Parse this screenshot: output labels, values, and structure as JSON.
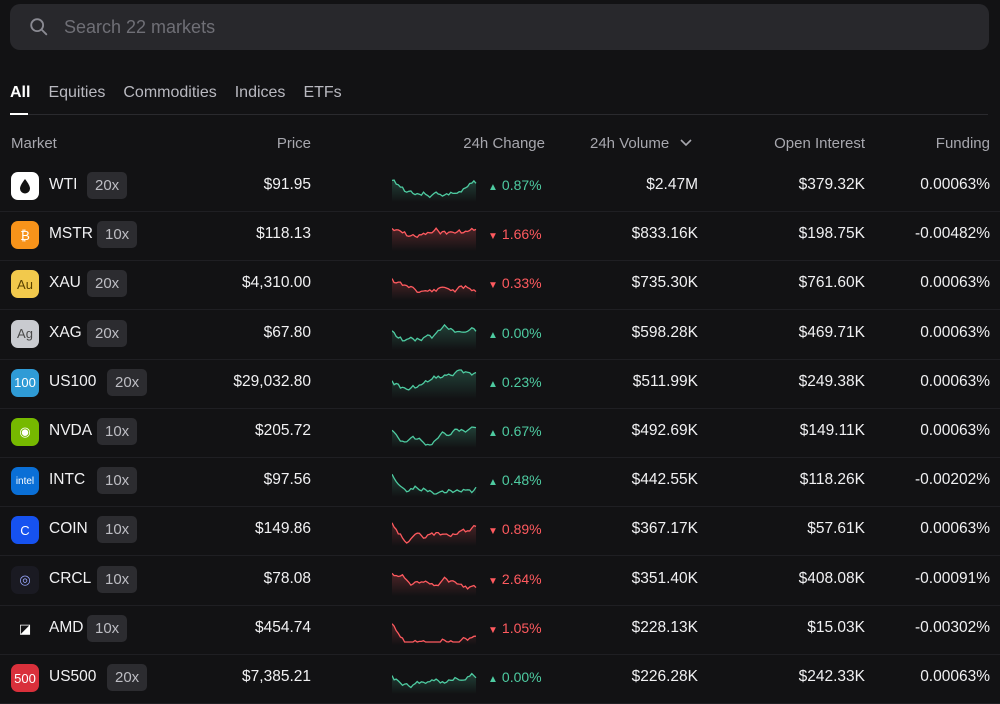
{
  "search": {
    "placeholder": "Search 22 markets"
  },
  "tabs": [
    {
      "label": "All",
      "active": true
    },
    {
      "label": "Equities"
    },
    {
      "label": "Commodities"
    },
    {
      "label": "Indices"
    },
    {
      "label": "ETFs"
    }
  ],
  "columns": {
    "market": "Market",
    "price": "Price",
    "change": "24h Change",
    "volume": "24h Volume",
    "oi": "Open Interest",
    "funding": "Funding"
  },
  "colors": {
    "up": "#4ecba1",
    "down": "#ff5a5f",
    "accent": "#ffffff"
  },
  "rows": [
    {
      "symbol": "WTI",
      "leverage": "20x",
      "price": "$91.95",
      "change": "0.87%",
      "dir": "up",
      "volume": "$2.47M",
      "oi": "$379.32K",
      "funding": "0.00063%",
      "logo": "oil-drop-icon",
      "logo_text": "",
      "logo_bg": "#ffffff",
      "logo_fg": "#111111"
    },
    {
      "symbol": "MSTR",
      "leverage": "10x",
      "price": "$118.13",
      "change": "1.66%",
      "dir": "down",
      "volume": "$833.16K",
      "oi": "$198.75K",
      "funding": "-0.00482%",
      "logo": "bitcoin-icon",
      "logo_text": "₿",
      "logo_bg": "#f7931a",
      "logo_fg": "#ffffff"
    },
    {
      "symbol": "XAU",
      "leverage": "20x",
      "price": "$4,310.00",
      "change": "0.33%",
      "dir": "down",
      "volume": "$735.30K",
      "oi": "$761.60K",
      "funding": "0.00063%",
      "logo": "gold-icon",
      "logo_text": "Au",
      "logo_bg": "#f2c94c",
      "logo_fg": "#5a4200"
    },
    {
      "symbol": "XAG",
      "leverage": "20x",
      "price": "$67.80",
      "change": "0.00%",
      "dir": "up",
      "volume": "$598.28K",
      "oi": "$469.71K",
      "funding": "0.00063%",
      "logo": "silver-icon",
      "logo_text": "Ag",
      "logo_bg": "#c9cbd0",
      "logo_fg": "#4a4a4a"
    },
    {
      "symbol": "US100",
      "leverage": "20x",
      "price": "$29,032.80",
      "change": "0.23%",
      "dir": "up",
      "volume": "$511.99K",
      "oi": "$249.38K",
      "funding": "0.00063%",
      "logo": "us100-icon",
      "logo_text": "100",
      "logo_bg": "#2f9bd6",
      "logo_fg": "#ffffff"
    },
    {
      "symbol": "NVDA",
      "leverage": "10x",
      "price": "$205.72",
      "change": "0.67%",
      "dir": "up",
      "volume": "$492.69K",
      "oi": "$149.11K",
      "funding": "0.00063%",
      "logo": "nvidia-icon",
      "logo_text": "◉",
      "logo_bg": "#76b900",
      "logo_fg": "#ffffff"
    },
    {
      "symbol": "INTC",
      "leverage": "10x",
      "price": "$97.56",
      "change": "0.48%",
      "dir": "up",
      "volume": "$442.55K",
      "oi": "$118.26K",
      "funding": "-0.00202%",
      "logo": "intel-icon",
      "logo_text": "intel",
      "logo_bg": "#0a6fd6",
      "logo_fg": "#ffffff"
    },
    {
      "symbol": "COIN",
      "leverage": "10x",
      "price": "$149.86",
      "change": "0.89%",
      "dir": "down",
      "volume": "$367.17K",
      "oi": "$57.61K",
      "funding": "0.00063%",
      "logo": "coinbase-icon",
      "logo_text": "C",
      "logo_bg": "#1652f0",
      "logo_fg": "#ffffff"
    },
    {
      "symbol": "CRCL",
      "leverage": "10x",
      "price": "$78.08",
      "change": "2.64%",
      "dir": "down",
      "volume": "$351.40K",
      "oi": "$408.08K",
      "funding": "-0.00091%",
      "logo": "circle-icon",
      "logo_text": "◎",
      "logo_bg": "#1a1a22",
      "logo_fg": "#9aa8ff"
    },
    {
      "symbol": "AMD",
      "leverage": "10x",
      "price": "$454.74",
      "change": "1.05%",
      "dir": "down",
      "volume": "$228.13K",
      "oi": "$15.03K",
      "funding": "-0.00302%",
      "logo": "amd-icon",
      "logo_text": "◪",
      "logo_bg": "#121214",
      "logo_fg": "#ffffff"
    },
    {
      "symbol": "US500",
      "leverage": "20x",
      "price": "$7,385.21",
      "change": "0.00%",
      "dir": "up",
      "volume": "$226.28K",
      "oi": "$242.33K",
      "funding": "0.00063%",
      "logo": "us500-icon",
      "logo_text": "500",
      "logo_bg": "#d9303b",
      "logo_fg": "#ffffff"
    }
  ]
}
